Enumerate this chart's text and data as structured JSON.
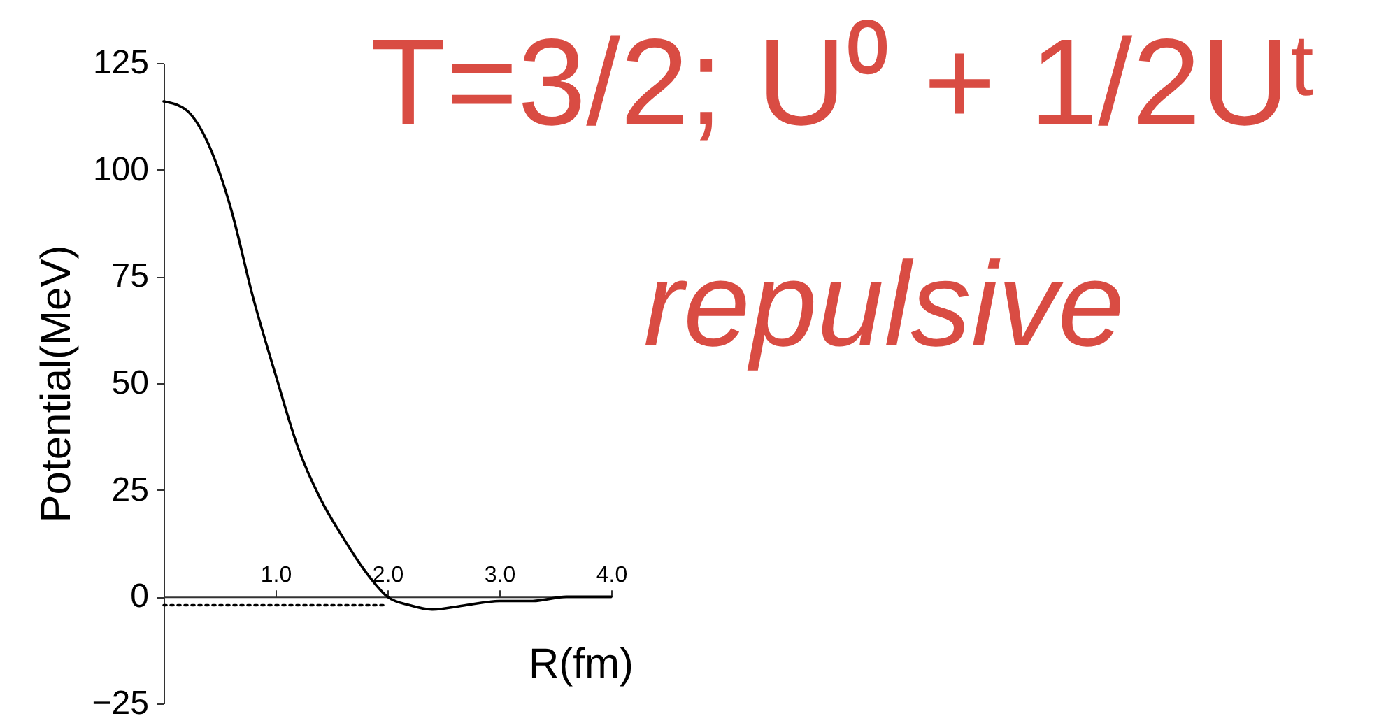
{
  "chart_data": {
    "type": "line",
    "title": "T=3/2; U⁰ + 1/2Uᵗ",
    "xlabel": "R(fm)",
    "ylabel": "Potential(MeV)",
    "annotations": [
      "repulsive"
    ],
    "series": [
      {
        "color": "#000000",
        "line_style": "solid",
        "x": [
          0,
          0.2,
          0.4,
          0.6,
          0.8,
          1.0,
          1.2,
          1.4,
          1.6,
          1.8,
          2.0,
          2.2,
          2.4,
          2.7,
          3.0,
          3.3,
          3.6,
          4.0
        ],
        "values": [
          116,
          114,
          106,
          91,
          70,
          52,
          35,
          23,
          14,
          6,
          0,
          -2,
          -3,
          -2,
          -1,
          -1,
          0,
          0
        ]
      },
      {
        "color": "#000000",
        "line_style": "dotted",
        "x": [
          0,
          0.5,
          1.0,
          1.5,
          2.0
        ],
        "values": [
          -2,
          -2,
          -2,
          -2,
          -2
        ]
      }
    ],
    "xlim": [
      0,
      4
    ],
    "xticks": [
      {
        "value": 1,
        "label": "1.0"
      },
      {
        "value": 2,
        "label": "2.0"
      },
      {
        "value": 3,
        "label": "3.0"
      },
      {
        "value": 4,
        "label": "4.0"
      }
    ],
    "ylim": [
      -25,
      125
    ],
    "yticks": [
      -25,
      0,
      25,
      50,
      75,
      100,
      125
    ]
  }
}
